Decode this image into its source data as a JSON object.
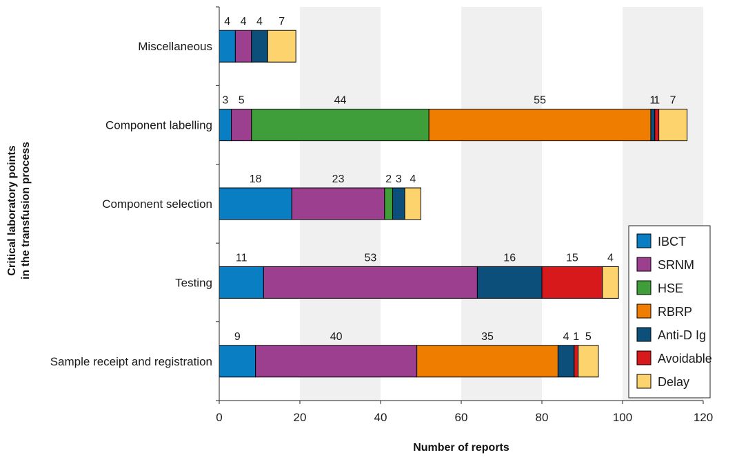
{
  "chart_data": {
    "type": "bar",
    "orientation": "horizontal",
    "stacked": true,
    "title": "",
    "xlabel": "Number of reports",
    "ylabel_lines": [
      "Critical laboratory points",
      "in the transfusion process"
    ],
    "xlim": [
      0,
      120
    ],
    "xticks": [
      0,
      20,
      40,
      60,
      80,
      100,
      120
    ],
    "xtick_labels": [
      "0",
      "20",
      "40",
      "60",
      "80",
      "100",
      "120"
    ],
    "shaded_bands": [
      [
        20,
        40
      ],
      [
        60,
        80
      ],
      [
        100,
        120
      ]
    ],
    "legend_position": "bottom-right",
    "categories": [
      "Miscellaneous",
      "Component labelling",
      "Component selection",
      "Testing",
      "Sample receipt and registration"
    ],
    "series": [
      {
        "name": "IBCT",
        "color": "#0a7ec2",
        "values": [
          4,
          3,
          18,
          11,
          9
        ]
      },
      {
        "name": "SRNM",
        "color": "#9b3f8e",
        "values": [
          4,
          5,
          23,
          53,
          40
        ]
      },
      {
        "name": "HSE",
        "color": "#3f9e3a",
        "values": [
          0,
          44,
          2,
          0,
          0
        ]
      },
      {
        "name": "RBRP",
        "color": "#ef7d00",
        "values": [
          0,
          55,
          0,
          0,
          35
        ]
      },
      {
        "name": "Anti-D Ig",
        "color": "#0b4f7a",
        "values": [
          4,
          1,
          3,
          16,
          4
        ]
      },
      {
        "name": "Avoidable",
        "color": "#d7191c",
        "values": [
          0,
          1,
          0,
          15,
          1
        ]
      },
      {
        "name": "Delay",
        "color": "#fdd36e",
        "values": [
          7,
          7,
          4,
          4,
          5
        ]
      }
    ]
  }
}
